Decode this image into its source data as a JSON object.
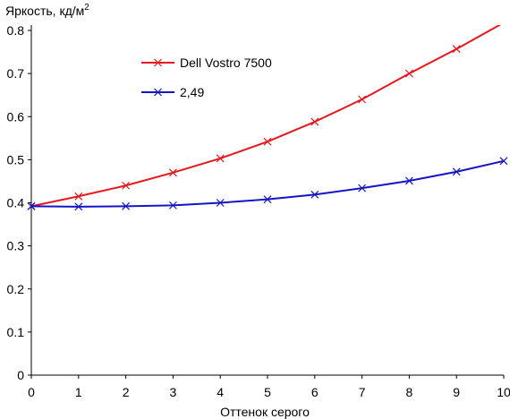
{
  "chart_data": {
    "type": "line",
    "title": "",
    "xlabel": "Оттенок серого",
    "ylabel": "Яркость, кд/м",
    "ylabel_superscript": "2",
    "x": [
      0,
      1,
      2,
      3,
      4,
      5,
      6,
      7,
      8,
      9,
      10
    ],
    "xlim": [
      0,
      10
    ],
    "ylim": [
      0,
      0.8
    ],
    "x_ticks": [
      "0",
      "1",
      "2",
      "3",
      "4",
      "5",
      "6",
      "7",
      "8",
      "9",
      "10"
    ],
    "y_ticks": [
      "0",
      "0.1",
      "0.2",
      "0.3",
      "0.4",
      "0.5",
      "0.6",
      "0.7",
      "0.8"
    ],
    "grid": false,
    "legend_position": "top-left",
    "marker": "x",
    "series": [
      {
        "name": "Dell Vostro 7500",
        "color": "#e8171c",
        "values": [
          0.392,
          0.415,
          0.44,
          0.47,
          0.503,
          0.542,
          0.588,
          0.64,
          0.7,
          0.757,
          0.818
        ]
      },
      {
        "name": "2,49",
        "color": "#1414c8",
        "values": [
          0.392,
          0.391,
          0.392,
          0.394,
          0.4,
          0.408,
          0.419,
          0.434,
          0.451,
          0.472,
          0.497
        ]
      }
    ]
  }
}
